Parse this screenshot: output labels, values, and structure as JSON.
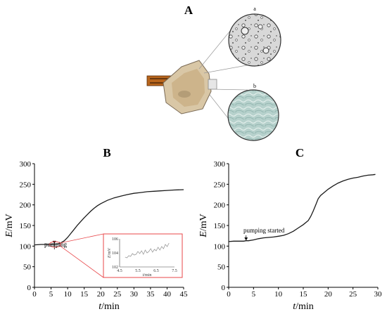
{
  "panels": {
    "A": {
      "letter": "A",
      "zoom_labels": [
        "a",
        "b"
      ]
    },
    "B": {
      "letter": "B",
      "annotation": "pumping"
    },
    "C": {
      "letter": "C",
      "annotation": "pumping started"
    }
  },
  "colors": {
    "curve": "#1a1a1a",
    "inset_curve": "#9a9a9a",
    "inset_border": "#e8474a",
    "axis": "#000000"
  },
  "chart_data": [
    {
      "id": "B",
      "type": "line",
      "xlabel_italic": "t",
      "xlabel_unit": "/min",
      "ylabel_italic": "E",
      "ylabel_unit": "/mV",
      "xlim": [
        0,
        45
      ],
      "ylim": [
        0,
        300
      ],
      "x_ticks": [
        0,
        5,
        10,
        15,
        20,
        25,
        30,
        35,
        40,
        45
      ],
      "y_ticks": [
        0,
        50,
        100,
        150,
        200,
        250,
        300
      ],
      "x": [
        0,
        2,
        4,
        5,
        6,
        7,
        8,
        9,
        10,
        11,
        12,
        13,
        14,
        15,
        16,
        17,
        18,
        19,
        20,
        22,
        24,
        26,
        28,
        30,
        32,
        34,
        36,
        38,
        40,
        42,
        45
      ],
      "values": [
        103,
        104,
        104,
        104,
        105,
        105,
        108,
        113,
        121,
        131,
        141,
        151,
        160,
        169,
        177,
        185,
        192,
        198,
        203,
        211,
        217,
        221,
        225,
        228,
        230,
        232,
        233,
        234,
        235,
        236,
        237
      ],
      "inset": {
        "xlim": [
          4.5,
          7.5
        ],
        "ylim": [
          102,
          106
        ],
        "x_ticks": [
          4.5,
          5.5,
          6.5,
          7.5
        ],
        "y_ticks": [
          102,
          104,
          106
        ],
        "xlabel_italic": "t",
        "xlabel_unit": "/min",
        "ylabel_italic": "E",
        "ylabel_unit": "/mV",
        "x": [
          4.8,
          4.9,
          5.0,
          5.1,
          5.2,
          5.3,
          5.4,
          5.5,
          5.6,
          5.7,
          5.8,
          5.9,
          6.0,
          6.1,
          6.2,
          6.3,
          6.4,
          6.5,
          6.6,
          6.7,
          6.8,
          6.9,
          7.0,
          7.1,
          7.2
        ],
        "values": [
          103.4,
          103.3,
          103.6,
          103.5,
          103.9,
          103.7,
          103.8,
          104.2,
          103.9,
          104.3,
          103.8,
          104.4,
          104.0,
          104.2,
          104.6,
          104.1,
          104.5,
          104.3,
          104.8,
          104.4,
          104.9,
          104.6,
          105.2,
          104.9,
          105.4
        ]
      }
    },
    {
      "id": "C",
      "type": "line",
      "xlabel_italic": "t",
      "xlabel_unit": "/min",
      "ylabel_italic": "E",
      "ylabel_unit": "/mV",
      "xlim": [
        0,
        30
      ],
      "ylim": [
        0,
        300
      ],
      "x_ticks": [
        0,
        5,
        10,
        15,
        20,
        25,
        30
      ],
      "y_ticks": [
        0,
        50,
        100,
        150,
        200,
        250,
        300
      ],
      "x": [
        0,
        1,
        2,
        3,
        3.5,
        4,
        5,
        6,
        7,
        8,
        9,
        10,
        11,
        12,
        13,
        14,
        15,
        16,
        16.5,
        17,
        17.5,
        18,
        18.5,
        19,
        20,
        21,
        22,
        23,
        24,
        25,
        26,
        27,
        28,
        29,
        29.5
      ],
      "values": [
        111,
        112,
        112,
        112,
        113,
        113,
        115,
        118,
        120,
        121,
        122,
        124,
        126,
        130,
        136,
        144,
        152,
        162,
        172,
        185,
        200,
        215,
        223,
        228,
        238,
        246,
        253,
        258,
        262,
        265,
        267,
        270,
        272,
        273,
        274
      ]
    }
  ]
}
